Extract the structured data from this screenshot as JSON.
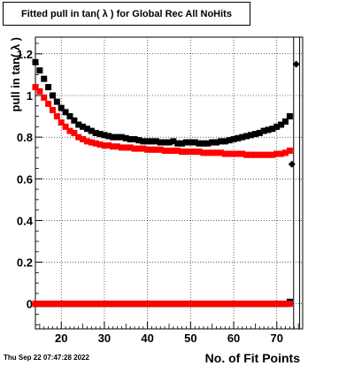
{
  "title": "Fitted pull in tan( λ ) for Global Rec All NoHits",
  "timestamp": "Thu Sep 22 07:47:28 2022",
  "chart_data": {
    "type": "scatter",
    "title": "Fitted pull in tan( λ ) for Global Rec All NoHits",
    "xlabel": "No. of Fit Points",
    "ylabel": "pull in tan( λ )",
    "xlim": [
      14,
      76
    ],
    "ylim": [
      -0.12,
      1.28
    ],
    "x_ticks": [
      20,
      30,
      40,
      50,
      60,
      70
    ],
    "y_ticks": [
      0,
      0.2,
      0.4,
      0.6,
      0.8,
      1,
      1.2
    ],
    "y_tick_labels": [
      "0",
      "0.2",
      "0.4",
      "0.6",
      "0.8",
      "1",
      "1.2"
    ],
    "grid": true,
    "colors": {
      "black": "#000000",
      "red": "#ff0000"
    },
    "series": [
      {
        "color": "#000000",
        "marker": "square",
        "x": [
          14,
          15,
          16,
          17,
          18,
          19,
          20,
          21,
          22,
          23,
          24,
          25,
          26,
          27,
          28,
          29,
          30,
          31,
          32,
          33,
          34,
          35,
          36,
          37,
          38,
          39,
          40,
          41,
          42,
          43,
          44,
          45,
          46,
          47,
          48,
          49,
          50,
          51,
          52,
          53,
          54,
          55,
          56,
          57,
          58,
          59,
          60,
          61,
          62,
          63,
          64,
          65,
          66,
          67,
          68,
          69,
          70,
          71,
          72,
          73
        ],
        "y": [
          1.16,
          1.12,
          1.08,
          1.04,
          1.0,
          0.97,
          0.94,
          0.92,
          0.9,
          0.88,
          0.86,
          0.85,
          0.84,
          0.83,
          0.82,
          0.815,
          0.81,
          0.805,
          0.8,
          0.8,
          0.8,
          0.795,
          0.79,
          0.79,
          0.785,
          0.78,
          0.78,
          0.78,
          0.78,
          0.775,
          0.775,
          0.775,
          0.78,
          0.77,
          0.77,
          0.775,
          0.775,
          0.775,
          0.77,
          0.77,
          0.77,
          0.775,
          0.775,
          0.78,
          0.78,
          0.785,
          0.79,
          0.795,
          0.8,
          0.805,
          0.81,
          0.815,
          0.82,
          0.83,
          0.835,
          0.84,
          0.85,
          0.86,
          0.875,
          0.9
        ]
      },
      {
        "color": "#ff0000",
        "marker": "square",
        "x": [
          14,
          15,
          16,
          17,
          18,
          19,
          20,
          21,
          22,
          23,
          24,
          25,
          26,
          27,
          28,
          29,
          30,
          31,
          32,
          33,
          34,
          35,
          36,
          37,
          38,
          39,
          40,
          41,
          42,
          43,
          44,
          45,
          46,
          47,
          48,
          49,
          50,
          51,
          52,
          53,
          54,
          55,
          56,
          57,
          58,
          59,
          60,
          61,
          62,
          63,
          64,
          65,
          66,
          67,
          68,
          69,
          70,
          71,
          72,
          73
        ],
        "y": [
          1.04,
          1.02,
          0.99,
          0.96,
          0.93,
          0.9,
          0.87,
          0.85,
          0.83,
          0.82,
          0.8,
          0.79,
          0.78,
          0.775,
          0.77,
          0.765,
          0.76,
          0.76,
          0.755,
          0.755,
          0.75,
          0.75,
          0.75,
          0.745,
          0.745,
          0.745,
          0.74,
          0.74,
          0.74,
          0.74,
          0.735,
          0.735,
          0.735,
          0.735,
          0.73,
          0.73,
          0.73,
          0.73,
          0.73,
          0.725,
          0.725,
          0.725,
          0.725,
          0.725,
          0.72,
          0.72,
          0.72,
          0.72,
          0.72,
          0.715,
          0.715,
          0.715,
          0.715,
          0.715,
          0.715,
          0.715,
          0.72,
          0.72,
          0.725,
          0.735
        ]
      },
      {
        "color": "#000000",
        "marker": "square",
        "x": [
          14,
          15,
          16,
          17,
          18,
          19,
          20,
          21,
          22,
          23,
          24,
          25,
          26,
          27,
          28,
          29,
          30,
          31,
          32,
          33,
          34,
          35,
          36,
          37,
          38,
          39,
          40,
          41,
          42,
          43,
          44,
          45,
          46,
          47,
          48,
          49,
          50,
          51,
          52,
          53,
          54,
          55,
          56,
          57,
          58,
          59,
          60,
          61,
          62,
          63,
          64,
          65,
          66,
          67,
          68,
          69,
          70,
          71,
          72,
          73
        ],
        "y": [
          0.0,
          0.0,
          0.0,
          0.0,
          0.0,
          0.0,
          0.0,
          0.0,
          0.0,
          0.0,
          0.0,
          0.0,
          0.0,
          0.0,
          0.0,
          0.0,
          0.0,
          0.0,
          0.0,
          0.0,
          0.0,
          0.0,
          0.0,
          0.0,
          0.0,
          0.0,
          0.0,
          0.0,
          0.0,
          0.0,
          0.0,
          0.0,
          0.0,
          0.0,
          0.0,
          0.0,
          0.0,
          0.0,
          0.0,
          0.0,
          0.0,
          0.0,
          0.0,
          0.0,
          0.0,
          0.0,
          0.0,
          0.0,
          0.0,
          0.0,
          0.0,
          0.0,
          0.0,
          0.0,
          0.0,
          0.0,
          0.0,
          0.0,
          0.0,
          0.01
        ]
      },
      {
        "color": "#ff0000",
        "marker": "square",
        "x": [
          14,
          15,
          16,
          17,
          18,
          19,
          20,
          21,
          22,
          23,
          24,
          25,
          26,
          27,
          28,
          29,
          30,
          31,
          32,
          33,
          34,
          35,
          36,
          37,
          38,
          39,
          40,
          41,
          42,
          43,
          44,
          45,
          46,
          47,
          48,
          49,
          50,
          51,
          52,
          53,
          54,
          55,
          56,
          57,
          58,
          59,
          60,
          61,
          62,
          63,
          64,
          65,
          66,
          67,
          68,
          69,
          70,
          71,
          72,
          73
        ],
        "y": [
          0.0,
          0.0,
          0.0,
          0.0,
          0.0,
          0.0,
          0.0,
          0.0,
          0.0,
          0.0,
          0.0,
          0.0,
          0.0,
          0.0,
          0.0,
          0.0,
          0.0,
          0.0,
          0.0,
          0.0,
          0.0,
          0.0,
          0.0,
          0.0,
          0.0,
          0.0,
          0.0,
          0.0,
          0.0,
          0.0,
          0.0,
          0.0,
          0.0,
          0.0,
          0.0,
          0.0,
          0.0,
          0.0,
          0.0,
          0.0,
          0.0,
          0.0,
          0.0,
          0.0,
          0.0,
          0.0,
          0.0,
          0.0,
          0.0,
          0.0,
          0.0,
          0.0,
          0.0,
          0.0,
          0.0,
          0.0,
          0.0,
          0.0,
          0.0,
          0.0
        ]
      },
      {
        "color": "#000000",
        "marker": "diamond",
        "x": [
          73.5,
          74.5
        ],
        "y": [
          0.67,
          1.15
        ]
      }
    ]
  }
}
